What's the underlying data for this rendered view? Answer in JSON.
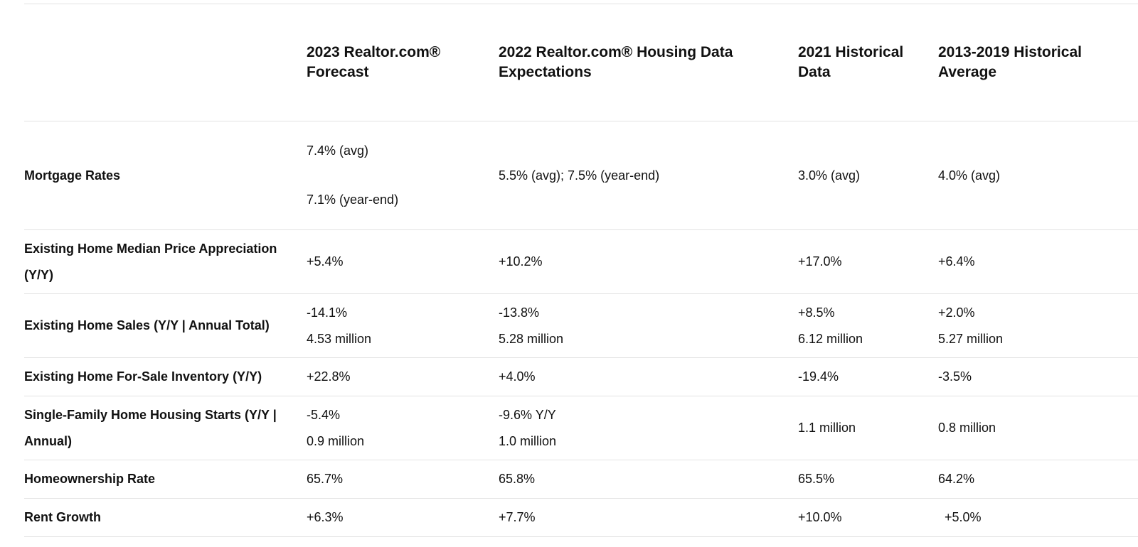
{
  "table": {
    "headers": [
      "",
      "2023 Realtor.com® Forecast",
      "2022 Realtor.com® Housing Data Expectations",
      "2021 Historical Data",
      "2013-2019 Historical Average"
    ],
    "header_lines": [
      [
        "",
        ""
      ],
      [
        "2023 Realtor.com®",
        "Forecast"
      ],
      [
        "2022 Realtor.com® Housing Data",
        "Expectations"
      ],
      [
        "2021 Historical",
        "Data"
      ],
      [
        "2013-2019 Historical",
        "Average"
      ]
    ],
    "rows": [
      {
        "label": "Mortgage Rates",
        "c1": [
          "7.4% (avg)",
          "7.1% (year-end)"
        ],
        "c2": "5.5% (avg); 7.5% (year-end)",
        "c3": "3.0% (avg)",
        "c4": "4.0% (avg)"
      },
      {
        "label_lines": [
          "Existing Home Median Price Appreciation",
          "(Y/Y)"
        ],
        "c1": "+5.4%",
        "c2": "+10.2%",
        "c3": "+17.0%",
        "c4": "+6.4%"
      },
      {
        "label": "Existing Home Sales (Y/Y | Annual Total)",
        "c1": [
          "-14.1%",
          "4.53 million"
        ],
        "c2": [
          "-13.8%",
          "5.28 million"
        ],
        "c3": [
          "+8.5%",
          "6.12 million"
        ],
        "c4": [
          "+2.0%",
          "5.27 million"
        ]
      },
      {
        "label": "Existing Home For-Sale Inventory (Y/Y)",
        "c1": "+22.8%",
        "c2": "+4.0%",
        "c3": "-19.4%",
        "c4": "-3.5%"
      },
      {
        "label_lines": [
          "Single-Family Home Housing Starts (Y/Y |",
          "Annual)"
        ],
        "c1": [
          "-5.4%",
          "0.9 million"
        ],
        "c2": [
          "-9.6% Y/Y",
          "1.0 million"
        ],
        "c3": "1.1 million",
        "c4": "0.8 million"
      },
      {
        "label": "Homeownership Rate",
        "c1": "65.7%",
        "c2": "65.8%",
        "c3": "65.5%",
        "c4": "64.2%"
      },
      {
        "label": "Rent Growth",
        "c1": "+6.3%",
        "c2": "+7.7%",
        "c3": "+10.0%",
        "c4": "+5.0%"
      }
    ]
  }
}
